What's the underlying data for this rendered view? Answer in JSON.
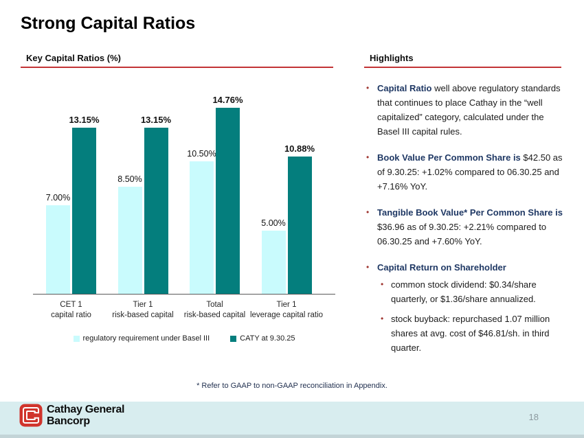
{
  "ui": {
    "bullet_char": "•"
  },
  "slide": {
    "title": "Strong Capital Ratios",
    "page_number": "18",
    "footnote": "* Refer to GAAP to non-GAAP reconciliation in Appendix."
  },
  "left_panel": {
    "header": "Key Capital Ratios (%)"
  },
  "chart_data": {
    "type": "bar",
    "title": "Key Capital Ratios (%)",
    "categories": [
      "CET 1\ncapital ratio",
      "Tier 1\nrisk-based capital",
      "Total\nrisk-based capital",
      "Tier 1\nleverage capital ratio"
    ],
    "series": [
      {
        "name": "regulatory requirement under Basel III",
        "color": "#c9fbfd",
        "values": [
          7.0,
          8.5,
          10.5,
          5.0
        ],
        "data_labels": [
          "7.00%",
          "8.50%",
          "10.50%",
          "5.00%"
        ],
        "emphasis": false
      },
      {
        "name": "CATY at 9.30.25",
        "color": "#047e7d",
        "values": [
          13.15,
          13.15,
          14.76,
          10.88
        ],
        "data_labels": [
          "13.15%",
          "13.15%",
          "14.76%",
          "10.88%"
        ],
        "emphasis": true
      }
    ],
    "ylim": [
      0,
      16
    ],
    "grid": false,
    "legend_position": "bottom"
  },
  "highlights": {
    "header": "Highlights",
    "bullets": [
      {
        "lead": "Capital Ratio",
        "text": " well above regulatory standards that continues to place Cathay in the “well capitalized” category, calculated under the Basel III capital rules."
      },
      {
        "lead": "Book Value Per Common Share is",
        "text": " $42.50 as of 9.30.25: +1.02% compared to 06.30.25 and +7.16% YoY."
      },
      {
        "lead": "Tangible Book Value* Per Common Share is",
        "text": " $36.96 as of 9.30.25: +2.21% compared to 06.30.25 and +7.60% YoY."
      },
      {
        "lead": "Capital Return on Shareholder",
        "text": "",
        "sub_bullets": [
          "common stock dividend: $0.34/share quarterly, or $1.36/share annualized.",
          "stock buyback: repurchased 1.07 million shares at avg. cost of $46.81/sh. in third quarter."
        ]
      }
    ]
  },
  "footer": {
    "logo_line1": "Cathay General",
    "logo_line2": "Bancorp"
  },
  "colors": {
    "accent_red_line": "#c23335",
    "bullet_red": "#a03833",
    "navy_bold_text": "#1f3864",
    "bar_light": "#c9fbfd",
    "bar_dark": "#047e7d",
    "footer_band": "#d8edef",
    "logo_red": "#d0342c"
  }
}
